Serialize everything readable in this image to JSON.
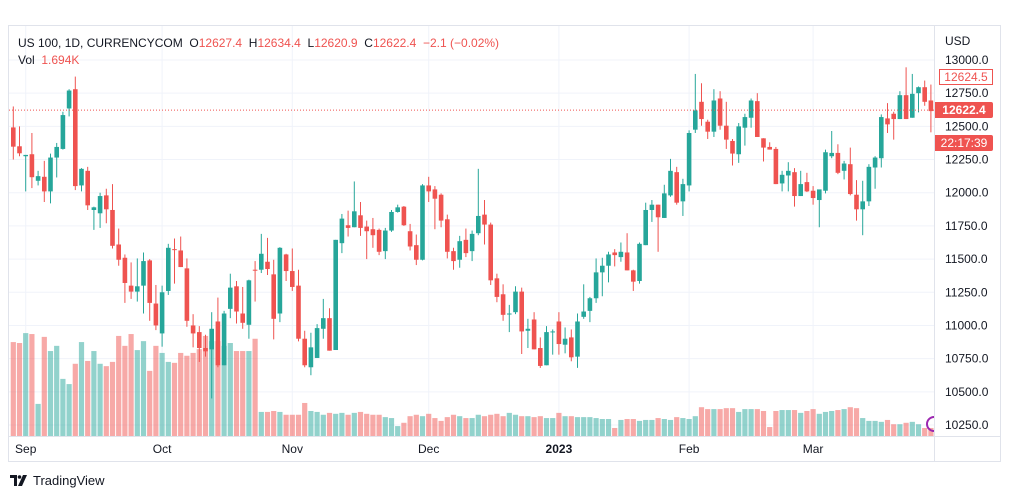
{
  "legend": {
    "symbol": "US 100, 1D, CURRENCYCOM",
    "open_label": "O",
    "open": "12627.4",
    "high_label": "H",
    "high": "12634.4",
    "low_label": "L",
    "low": "12620.9",
    "close_label": "C",
    "close": "12622.4",
    "change": "−2.1 (−0.02%)",
    "vol_label": "Vol",
    "vol": "1.694K"
  },
  "price_axis": {
    "currency": "USD",
    "ask_tag": "12624.5",
    "last_price": "12622.4",
    "countdown": "22:17:39"
  },
  "brand": {
    "name": "TradingView"
  },
  "colors": {
    "up": "#26a69a",
    "down": "#ef5350",
    "event_marker": "#9c27b0"
  },
  "chart_data": {
    "type": "candlestick",
    "title": "US 100, 1D, CURRENCYCOM",
    "ylabel": "USD",
    "ylim": [
      10250,
      13000
    ],
    "yticks": [
      "13000.0",
      "12750.0",
      "12500.0",
      "12250.0",
      "12000.0",
      "11750.0",
      "11500.0",
      "11250.0",
      "11000.0",
      "10750.0",
      "10500.0",
      "10250.0"
    ],
    "xticks": [
      {
        "label": "Sep",
        "index": 2,
        "bold": false
      },
      {
        "label": "Oct",
        "index": 24,
        "bold": false
      },
      {
        "label": "Nov",
        "index": 45,
        "bold": false
      },
      {
        "label": "Dec",
        "index": 67,
        "bold": false
      },
      {
        "label": "2023",
        "index": 88,
        "bold": true
      },
      {
        "label": "Feb",
        "index": 109,
        "bold": false
      },
      {
        "label": "Mar",
        "index": 129,
        "bold": false
      }
    ],
    "last_price": 12622.4,
    "volume_unit": "K",
    "candles_fields": [
      "open",
      "high",
      "low",
      "close",
      "volume_k"
    ],
    "candles": [
      [
        12492,
        12650,
        12250,
        12347,
        19.9
      ],
      [
        12350,
        12500,
        12275,
        12297,
        19.7
      ],
      [
        12275,
        12285,
        12010,
        12285,
        21.8
      ],
      [
        12290,
        12450,
        12035,
        12117,
        21.6
      ],
      [
        12090,
        12165,
        12055,
        12125,
        6.8
      ],
      [
        12120,
        12240,
        11930,
        12010,
        21.0
      ],
      [
        12010,
        12295,
        11920,
        12265,
        18.0
      ],
      [
        12265,
        12375,
        12115,
        12345,
        19.1
      ],
      [
        12330,
        12610,
        12325,
        12585,
        12.1
      ],
      [
        12635,
        12780,
        12575,
        12770,
        11.0
      ],
      [
        12780,
        12875,
        12020,
        12050,
        15.3
      ],
      [
        12055,
        12185,
        12010,
        12180,
        19.9
      ],
      [
        12165,
        12195,
        11870,
        11905,
        15.9
      ],
      [
        11870,
        11895,
        11720,
        11890,
        18.0
      ],
      [
        11845,
        12000,
        11735,
        11975,
        15.3
      ],
      [
        11980,
        12030,
        11770,
        11875,
        14.8
      ],
      [
        11870,
        12065,
        11580,
        11600,
        15.7
      ],
      [
        11610,
        11730,
        11450,
        11495,
        21.2
      ],
      [
        11510,
        11535,
        11170,
        11320,
        19.1
      ],
      [
        11300,
        11475,
        11200,
        11255,
        21.6
      ],
      [
        11255,
        11505,
        11180,
        11295,
        18.2
      ],
      [
        11300,
        11550,
        11090,
        11485,
        20.1
      ],
      [
        11490,
        11500,
        11035,
        11170,
        13.8
      ],
      [
        11165,
        11305,
        10965,
        11000,
        19.1
      ],
      [
        10940,
        11300,
        10840,
        11250,
        17.6
      ],
      [
        11260,
        11615,
        11230,
        11585,
        15.7
      ],
      [
        11575,
        11655,
        11315,
        11570,
        15.5
      ],
      [
        11565,
        11670,
        11440,
        11440,
        17.6
      ],
      [
        11430,
        11505,
        10990,
        11035,
        17.0
      ],
      [
        11000,
        11085,
        10835,
        10940,
        17.6
      ],
      [
        10950,
        10995,
        10725,
        10830,
        18.4
      ],
      [
        10830,
        10930,
        10765,
        10805,
        21.2
      ],
      [
        10820,
        11100,
        10450,
        10975,
        20.1
      ],
      [
        11030,
        11210,
        10685,
        10700,
        20.1
      ],
      [
        10700,
        11110,
        10700,
        11090,
        19.1
      ],
      [
        11125,
        11390,
        11055,
        11285,
        19.7
      ],
      [
        11295,
        11335,
        11015,
        11105,
        18.0
      ],
      [
        11090,
        11290,
        10975,
        11020,
        18.0
      ],
      [
        11005,
        11345,
        10900,
        11340,
        18.0
      ],
      [
        11420,
        11485,
        11180,
        11415,
        20.6
      ],
      [
        11420,
        11690,
        11395,
        11540,
        5.1
      ],
      [
        11480,
        11660,
        11380,
        11425,
        5.1
      ],
      [
        11385,
        11495,
        10895,
        11050,
        5.3
      ],
      [
        11090,
        11590,
        11025,
        11585,
        5.1
      ],
      [
        11535,
        11540,
        11335,
        11410,
        4.5
      ],
      [
        11410,
        11580,
        11260,
        11290,
        4.5
      ],
      [
        11300,
        11420,
        10880,
        10900,
        4.5
      ],
      [
        10900,
        10960,
        10685,
        10700,
        7.0
      ],
      [
        10685,
        10945,
        10625,
        10835,
        5.3
      ],
      [
        10755,
        11010,
        10755,
        10980,
        5.1
      ],
      [
        10975,
        11200,
        10900,
        11055,
        4.5
      ],
      [
        11055,
        11130,
        10810,
        10810,
        4.9
      ],
      [
        10815,
        11645,
        10815,
        11645,
        4.7
      ],
      [
        11620,
        11840,
        11545,
        11805,
        4.9
      ],
      [
        11755,
        11865,
        11670,
        11735,
        4.5
      ],
      [
        11740,
        12085,
        11740,
        11860,
        4.9
      ],
      [
        11830,
        11930,
        11675,
        11735,
        5.1
      ],
      [
        11745,
        11790,
        11500,
        11710,
        4.7
      ],
      [
        11725,
        11810,
        11585,
        11680,
        4.5
      ],
      [
        11720,
        11730,
        11530,
        11555,
        4.5
      ],
      [
        11560,
        11735,
        11500,
        11715,
        4.0
      ],
      [
        11715,
        11870,
        11705,
        11855,
        3.8
      ],
      [
        11855,
        11910,
        11850,
        11890,
        2.1
      ],
      [
        11895,
        11900,
        11750,
        11755,
        2.8
      ],
      [
        11710,
        11765,
        11565,
        11595,
        4.2
      ],
      [
        11605,
        11685,
        11455,
        11495,
        4.5
      ],
      [
        11495,
        12065,
        11490,
        12055,
        4.2
      ],
      [
        12055,
        12120,
        11930,
        12010,
        4.7
      ],
      [
        12025,
        12050,
        11725,
        11955,
        3.8
      ],
      [
        11985,
        11995,
        11740,
        11790,
        3.2
      ],
      [
        11800,
        11835,
        11505,
        11555,
        4.0
      ],
      [
        11560,
        11585,
        11420,
        11485,
        4.5
      ],
      [
        11495,
        11675,
        11435,
        11635,
        4.2
      ],
      [
        11645,
        11730,
        11515,
        11545,
        3.8
      ],
      [
        11560,
        11715,
        11485,
        11690,
        3.8
      ],
      [
        11695,
        12180,
        11680,
        11825,
        4.5
      ],
      [
        11835,
        11945,
        11610,
        11760,
        4.2
      ],
      [
        11760,
        11775,
        11305,
        11340,
        4.5
      ],
      [
        11355,
        11390,
        11175,
        11215,
        4.7
      ],
      [
        11235,
        11310,
        11035,
        11080,
        4.2
      ],
      [
        11090,
        11155,
        10950,
        11090,
        4.9
      ],
      [
        11100,
        11295,
        11085,
        11255,
        4.5
      ],
      [
        11255,
        11285,
        10785,
        10955,
        4.2
      ],
      [
        10960,
        11050,
        10830,
        10975,
        4.2
      ],
      [
        11045,
        11100,
        10820,
        10820,
        4.0
      ],
      [
        10830,
        10910,
        10680,
        10695,
        4.2
      ],
      [
        10700,
        10995,
        10700,
        10950,
        3.8
      ],
      [
        10950,
        10970,
        10780,
        10955,
        3.8
      ],
      [
        11030,
        11100,
        10780,
        10860,
        4.9
      ],
      [
        10855,
        10985,
        10790,
        10900,
        4.2
      ],
      [
        10910,
        10970,
        10730,
        10760,
        4.2
      ],
      [
        10765,
        11090,
        10680,
        11030,
        4.0
      ],
      [
        11065,
        11310,
        11050,
        11105,
        4.0
      ],
      [
        11110,
        11215,
        11025,
        11205,
        4.0
      ],
      [
        11205,
        11505,
        11170,
        11400,
        3.8
      ],
      [
        11400,
        11510,
        11220,
        11450,
        3.6
      ],
      [
        11450,
        11555,
        11325,
        11535,
        3.6
      ],
      [
        11550,
        11575,
        11445,
        11530,
        1.7
      ],
      [
        11515,
        11625,
        11480,
        11555,
        3.4
      ],
      [
        11550,
        11695,
        11415,
        11415,
        3.6
      ],
      [
        11415,
        11420,
        11260,
        11330,
        3.6
      ],
      [
        11335,
        11625,
        11315,
        11615,
        3.2
      ],
      [
        11605,
        11925,
        11605,
        11870,
        3.4
      ],
      [
        11870,
        11945,
        11780,
        11910,
        3.4
      ],
      [
        11910,
        11910,
        11555,
        11815,
        3.8
      ],
      [
        11810,
        12060,
        11810,
        11995,
        3.6
      ],
      [
        11980,
        12255,
        11970,
        12165,
        3.4
      ],
      [
        12155,
        12195,
        11910,
        11925,
        4.0
      ],
      [
        11935,
        12105,
        11825,
        12065,
        3.8
      ],
      [
        12055,
        12470,
        12010,
        12450,
        3.6
      ],
      [
        12475,
        12895,
        12450,
        12620,
        4.2
      ],
      [
        12685,
        12825,
        12505,
        12555,
        6.1
      ],
      [
        12535,
        12550,
        12405,
        12460,
        5.7
      ],
      [
        12460,
        12780,
        12420,
        12695,
        5.7
      ],
      [
        12710,
        12765,
        12475,
        12505,
        5.7
      ],
      [
        12505,
        12685,
        12330,
        12400,
        5.9
      ],
      [
        12390,
        12405,
        12205,
        12295,
        5.9
      ],
      [
        12290,
        12525,
        12225,
        12500,
        5.1
      ],
      [
        12490,
        12595,
        12355,
        12570,
        5.7
      ],
      [
        12565,
        12710,
        12490,
        12695,
        5.7
      ],
      [
        12690,
        12750,
        12420,
        12420,
        5.7
      ],
      [
        12410,
        12410,
        12235,
        12340,
        5.3
      ],
      [
        12345,
        12380,
        12325,
        12325,
        1.9
      ],
      [
        12330,
        12345,
        12065,
        12065,
        5.3
      ],
      [
        12070,
        12165,
        12010,
        12135,
        5.5
      ],
      [
        12130,
        12230,
        12010,
        12165,
        5.5
      ],
      [
        12155,
        12185,
        11895,
        11975,
        5.5
      ],
      [
        11975,
        12165,
        11975,
        12065,
        4.9
      ],
      [
        12080,
        12150,
        12005,
        12010,
        5.3
      ],
      [
        12015,
        12050,
        11910,
        11960,
        5.7
      ],
      [
        11945,
        12000,
        11740,
        12025,
        4.7
      ],
      [
        12015,
        12325,
        11995,
        12305,
        5.1
      ],
      [
        12275,
        12465,
        12260,
        12300,
        5.3
      ],
      [
        12300,
        12365,
        12140,
        12150,
        5.5
      ],
      [
        12165,
        12240,
        12100,
        12220,
        5.7
      ],
      [
        12215,
        12340,
        11980,
        11990,
        6.1
      ],
      [
        11985,
        12095,
        11790,
        11875,
        5.9
      ],
      [
        11875,
        12090,
        11680,
        11935,
        3.8
      ],
      [
        11935,
        12215,
        11900,
        12195,
        3.2
      ],
      [
        12190,
        12275,
        12030,
        12265,
        3.2
      ],
      [
        12260,
        12590,
        12190,
        12570,
        3.0
      ],
      [
        12560,
        12675,
        12450,
        12515,
        3.4
      ],
      [
        12595,
        12610,
        12400,
        12555,
        2.5
      ],
      [
        12555,
        12765,
        12555,
        12735,
        2.5
      ],
      [
        12735,
        12945,
        12555,
        12555,
        2.8
      ],
      [
        12565,
        12895,
        12565,
        12745,
        3.0
      ],
      [
        12750,
        12800,
        12605,
        12795,
        2.5
      ],
      [
        12795,
        12845,
        12655,
        12685,
        1.7
      ],
      [
        12695,
        12815,
        12455,
        12615,
        1.7
      ],
      [
        12627.4,
        12634.4,
        12620.9,
        12622.4,
        1.694
      ]
    ]
  }
}
